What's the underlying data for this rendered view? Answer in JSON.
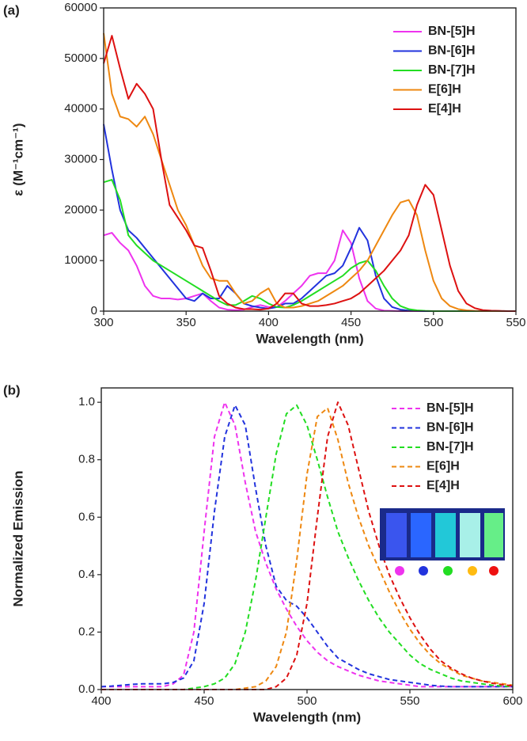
{
  "chart_data": [
    {
      "type": "line",
      "panel_label": "(a)",
      "x_label": "Wavelength (nm)",
      "y_label": "ε (M⁻¹cm⁻¹)",
      "dashed": false,
      "legend": "top-right",
      "xlim": [
        300,
        550
      ],
      "xticks": [
        300,
        350,
        400,
        450,
        500,
        550
      ],
      "ylim": [
        0,
        60000
      ],
      "yticks": [
        0,
        10000,
        20000,
        30000,
        40000,
        50000,
        60000
      ],
      "x": [
        300,
        305,
        310,
        315,
        320,
        325,
        330,
        335,
        340,
        345,
        350,
        355,
        360,
        365,
        370,
        375,
        380,
        385,
        390,
        395,
        400,
        405,
        410,
        415,
        420,
        425,
        430,
        435,
        440,
        445,
        450,
        455,
        460,
        465,
        470,
        475,
        480,
        485,
        490,
        495,
        500,
        505,
        510,
        515,
        520,
        525,
        530,
        535,
        540,
        545,
        550
      ],
      "series": [
        {
          "name": "BN-[5]H",
          "color": "#ee33ee",
          "values": [
            15000,
            15500,
            13500,
            12000,
            9000,
            5000,
            3000,
            2500,
            2500,
            2300,
            2500,
            3000,
            3500,
            2000,
            700,
            300,
            200,
            300,
            800,
            1200,
            800,
            800,
            2000,
            3500,
            5000,
            7000,
            7500,
            7500,
            10000,
            16000,
            13500,
            6500,
            2000,
            500,
            100,
            50,
            0,
            0,
            0,
            0,
            0,
            0,
            0,
            0,
            0,
            0,
            0,
            0,
            0,
            0,
            0
          ]
        },
        {
          "name": "BN-[6]H",
          "color": "#2233dd",
          "values": [
            37000,
            28000,
            20000,
            16000,
            14500,
            12500,
            10500,
            8500,
            6500,
            4500,
            2500,
            2000,
            3500,
            2500,
            2500,
            5000,
            3500,
            1500,
            1000,
            700,
            500,
            800,
            1500,
            1500,
            2500,
            4000,
            5500,
            7000,
            7500,
            9000,
            12500,
            16500,
            14000,
            7000,
            2500,
            800,
            300,
            100,
            50,
            0,
            0,
            0,
            0,
            0,
            0,
            0,
            0,
            0,
            0,
            0,
            0
          ]
        },
        {
          "name": "BN-[7]H",
          "color": "#22dd22",
          "values": [
            25500,
            26000,
            22000,
            15000,
            13000,
            11500,
            10000,
            9000,
            8000,
            7000,
            6000,
            5000,
            4000,
            3000,
            2000,
            1200,
            1200,
            2000,
            3000,
            2500,
            1500,
            800,
            700,
            1200,
            2000,
            3000,
            4000,
            5000,
            6000,
            7000,
            8500,
            9500,
            10000,
            8000,
            5000,
            2500,
            1000,
            400,
            150,
            50,
            0,
            0,
            0,
            0,
            0,
            0,
            0,
            0,
            0,
            0,
            0
          ]
        },
        {
          "name": "E[6]H",
          "color": "#ee8811",
          "values": [
            55000,
            43000,
            38500,
            38000,
            36500,
            38500,
            35000,
            30000,
            25000,
            20000,
            17000,
            13000,
            9000,
            6500,
            6000,
            6000,
            3500,
            1500,
            2000,
            3500,
            4500,
            1500,
            700,
            700,
            1000,
            1500,
            2000,
            3000,
            4000,
            5000,
            6500,
            8000,
            10000,
            13000,
            16000,
            19000,
            21500,
            22000,
            19000,
            12000,
            6000,
            2500,
            1000,
            400,
            150,
            50,
            0,
            0,
            0,
            0,
            0
          ]
        },
        {
          "name": "E[4]H",
          "color": "#dd1111",
          "values": [
            49000,
            54500,
            48000,
            42000,
            45000,
            43000,
            40000,
            30000,
            21000,
            18500,
            16000,
            13000,
            12500,
            8000,
            3000,
            1500,
            700,
            400,
            400,
            300,
            500,
            1500,
            3500,
            3500,
            1500,
            1000,
            1000,
            1200,
            1500,
            2000,
            2500,
            3500,
            5000,
            6500,
            8000,
            10000,
            12000,
            15000,
            21000,
            25000,
            23000,
            16000,
            9000,
            4000,
            1500,
            600,
            200,
            100,
            50,
            0,
            0
          ]
        }
      ]
    },
    {
      "type": "line",
      "panel_label": "(b)",
      "x_label": "Wavelength (nm)",
      "y_label": "Normalized Emission",
      "dashed": true,
      "legend": "top-right",
      "xlim": [
        400,
        600
      ],
      "xticks": [
        400,
        450,
        500,
        550,
        600
      ],
      "ylim": [
        0,
        1.05
      ],
      "yticks": [
        {
          "value": 0,
          "label": "0.0"
        },
        0.2,
        0.4,
        0.6,
        0.8,
        {
          "value": 1,
          "label": "1.0"
        }
      ],
      "x": [
        400,
        405,
        410,
        415,
        420,
        425,
        430,
        435,
        440,
        445,
        450,
        455,
        460,
        465,
        470,
        475,
        480,
        485,
        490,
        495,
        500,
        505,
        510,
        515,
        520,
        525,
        530,
        535,
        540,
        545,
        550,
        555,
        560,
        565,
        570,
        575,
        580,
        585,
        590,
        595,
        600
      ],
      "series": [
        {
          "name": "BN-[5]H",
          "color": "#ee33ee",
          "values": [
            0.01,
            0.01,
            0.01,
            0.01,
            0.01,
            0.01,
            0.01,
            0.02,
            0.05,
            0.2,
            0.55,
            0.88,
            1.0,
            0.92,
            0.72,
            0.55,
            0.44,
            0.35,
            0.28,
            0.22,
            0.17,
            0.13,
            0.1,
            0.08,
            0.065,
            0.05,
            0.04,
            0.03,
            0.025,
            0.02,
            0.015,
            0.01,
            0.01,
            0.01,
            0.01,
            0.01,
            0.01,
            0.01,
            0.01,
            0.01,
            0.01
          ]
        },
        {
          "name": "BN-[6]H",
          "color": "#2233dd",
          "values": [
            0.01,
            0.012,
            0.015,
            0.018,
            0.02,
            0.02,
            0.02,
            0.025,
            0.04,
            0.1,
            0.3,
            0.62,
            0.88,
            0.99,
            0.92,
            0.7,
            0.5,
            0.36,
            0.31,
            0.29,
            0.25,
            0.2,
            0.15,
            0.11,
            0.09,
            0.07,
            0.055,
            0.045,
            0.035,
            0.03,
            0.025,
            0.02,
            0.015,
            0.012,
            0.01,
            0.01,
            0.01,
            0.01,
            0.01,
            0.01,
            0.01
          ]
        },
        {
          "name": "BN-[7]H",
          "color": "#22dd22",
          "values": [
            0,
            0,
            0,
            0,
            0,
            0,
            0,
            0,
            0,
            0.005,
            0.01,
            0.02,
            0.04,
            0.09,
            0.2,
            0.38,
            0.6,
            0.82,
            0.96,
            0.99,
            0.92,
            0.8,
            0.67,
            0.55,
            0.46,
            0.38,
            0.31,
            0.25,
            0.2,
            0.16,
            0.12,
            0.09,
            0.07,
            0.055,
            0.04,
            0.03,
            0.025,
            0.02,
            0.015,
            0.012,
            0.01
          ]
        },
        {
          "name": "E[6]H",
          "color": "#ee8811",
          "values": [
            0,
            0,
            0,
            0,
            0,
            0,
            0,
            0,
            0,
            0,
            0,
            0,
            0,
            0,
            0.005,
            0.01,
            0.03,
            0.08,
            0.2,
            0.45,
            0.75,
            0.95,
            0.98,
            0.87,
            0.72,
            0.6,
            0.5,
            0.42,
            0.34,
            0.27,
            0.21,
            0.16,
            0.12,
            0.09,
            0.07,
            0.05,
            0.04,
            0.03,
            0.025,
            0.02,
            0.015
          ]
        },
        {
          "name": "E[4]H",
          "color": "#dd1111",
          "values": [
            0,
            0,
            0,
            0,
            0,
            0,
            0,
            0,
            0,
            0,
            0,
            0,
            0,
            0,
            0,
            0,
            0,
            0.01,
            0.04,
            0.12,
            0.3,
            0.6,
            0.88,
            1.0,
            0.92,
            0.77,
            0.62,
            0.5,
            0.4,
            0.32,
            0.25,
            0.19,
            0.14,
            0.1,
            0.075,
            0.055,
            0.04,
            0.03,
            0.022,
            0.017,
            0.013
          ]
        }
      ]
    }
  ]
}
